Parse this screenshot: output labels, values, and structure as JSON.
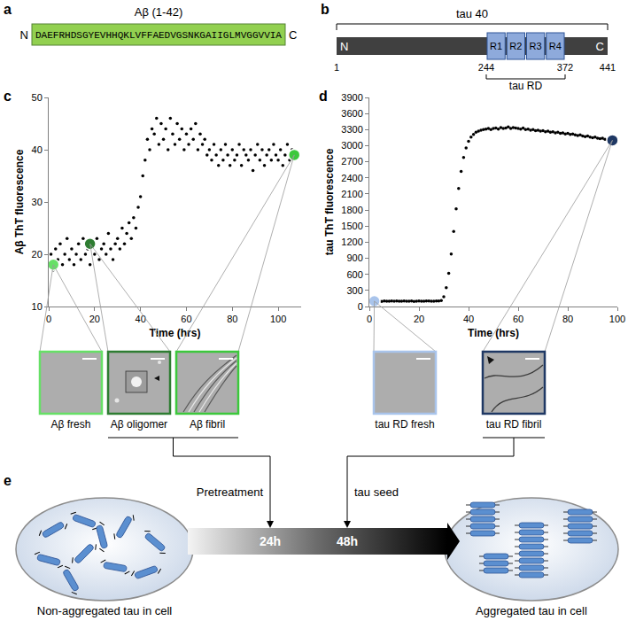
{
  "panel_labels": [
    "a",
    "b",
    "c",
    "d",
    "e"
  ],
  "panel_a": {
    "title": "Aβ (1-42)",
    "n_label": "N",
    "c_label": "C",
    "sequence": "DAEFRHDSGYEVHHQKLVFFAEDVGSNKGAIIGLMVGGVVIA",
    "color": "#92d050"
  },
  "panel_b": {
    "protein": "tau 40",
    "fragment": "tau RD",
    "n_label": "N",
    "c_label": "C",
    "repeats": [
      "R1",
      "R2",
      "R3",
      "R4"
    ],
    "start": 1,
    "length": 441,
    "fragment_range": [
      244,
      372
    ],
    "color": "#404040",
    "repeat_color": "#8eaadb"
  },
  "chart_data": [
    {
      "type": "scatter",
      "xlabel": "Time (hrs)",
      "ylabel": "Aβ ThT fluorescence",
      "xlim": [
        0,
        110
      ],
      "xticks": [
        0,
        20,
        40,
        60,
        80,
        100
      ],
      "ylim": [
        10,
        50
      ],
      "yticks": [
        10,
        20,
        30,
        40,
        50
      ],
      "grid": false,
      "series": [
        {
          "marker": "dot",
          "color": "#000000",
          "x": [
            0,
            1,
            2,
            3,
            4,
            5,
            6,
            7,
            8,
            9,
            10,
            11,
            12,
            13,
            14,
            15,
            16,
            17,
            18,
            19,
            20,
            21,
            22,
            23,
            24,
            25,
            26,
            27,
            28,
            29,
            30,
            31,
            32,
            33,
            34,
            35,
            36,
            37,
            38,
            39,
            40,
            41,
            42,
            43,
            44,
            45,
            46,
            47,
            48,
            49,
            50,
            51,
            52,
            53,
            54,
            55,
            56,
            57,
            58,
            59,
            60,
            61,
            62,
            63,
            64,
            65,
            66,
            67,
            68,
            69,
            70,
            71,
            72,
            73,
            74,
            75,
            76,
            77,
            78,
            79,
            80,
            81,
            82,
            83,
            84,
            85,
            86,
            87,
            88,
            89,
            90,
            91,
            92,
            93,
            94,
            95,
            96,
            97,
            98,
            99,
            100,
            101,
            102,
            103,
            104,
            105,
            106,
            107
          ],
          "values": [
            18,
            20,
            17,
            21,
            19,
            22,
            18,
            20,
            23,
            19,
            21,
            18,
            20,
            22,
            19,
            23,
            20,
            21,
            18,
            22,
            20,
            23,
            19,
            21,
            22,
            20,
            24,
            21,
            19,
            22,
            23,
            21,
            25,
            22,
            24,
            26,
            23,
            27,
            25,
            29,
            31,
            35,
            38,
            42,
            40,
            44,
            43,
            46,
            41,
            45,
            42,
            44,
            40,
            46,
            43,
            41,
            45,
            42,
            44,
            40,
            43,
            41,
            44,
            42,
            45,
            40,
            43,
            41,
            42,
            39,
            40,
            38,
            41,
            39,
            37,
            40,
            38,
            41,
            39,
            37,
            40,
            38,
            39,
            41,
            37,
            40,
            39,
            38,
            40,
            36,
            39,
            41,
            38,
            40,
            37,
            39,
            40,
            38,
            41,
            39,
            38,
            40,
            37,
            39,
            41,
            38,
            40,
            39
          ]
        },
        {
          "marker": "circle",
          "colors": [
            "#66e066",
            "#2e7d32",
            "#3cc83c"
          ],
          "x": [
            2,
            18,
            107
          ],
          "values": [
            18,
            22,
            39
          ]
        }
      ],
      "images": [
        {
          "label": "Aβ fresh",
          "color": "#66e066"
        },
        {
          "label": "Aβ oligomer",
          "color": "#2e7d32"
        },
        {
          "label": "Aβ fibril",
          "color": "#3cc83c"
        }
      ]
    },
    {
      "type": "scatter",
      "xlabel": "Time (hrs)",
      "ylabel": "tau ThT fluorescence",
      "xlim": [
        0,
        100
      ],
      "xticks": [
        0,
        20,
        40,
        60,
        80,
        100
      ],
      "ylim": [
        0,
        3900
      ],
      "yticks": [
        0,
        300,
        600,
        900,
        1200,
        1500,
        1800,
        2100,
        2400,
        2700,
        3000,
        3300,
        3600,
        3900
      ],
      "grid": false,
      "series": [
        {
          "marker": "dot",
          "color": "#000000",
          "x": [
            0,
            1,
            2,
            3,
            4,
            5,
            6,
            7,
            8,
            9,
            10,
            11,
            12,
            13,
            14,
            15,
            16,
            17,
            18,
            19,
            20,
            21,
            22,
            23,
            24,
            25,
            26,
            27,
            28,
            29,
            30,
            31,
            32,
            33,
            34,
            35,
            36,
            37,
            38,
            39,
            40,
            41,
            42,
            43,
            44,
            45,
            46,
            47,
            48,
            49,
            50,
            51,
            52,
            53,
            54,
            55,
            56,
            57,
            58,
            59,
            60,
            61,
            62,
            63,
            64,
            65,
            66,
            67,
            68,
            69,
            70,
            71,
            72,
            73,
            74,
            75,
            76,
            77,
            78,
            79,
            80,
            81,
            82,
            83,
            84,
            85,
            86,
            87,
            88,
            89,
            90,
            91,
            92,
            93,
            94,
            95,
            96,
            97,
            98
          ],
          "values": [
            100,
            105,
            98,
            102,
            100,
            97,
            103,
            101,
            99,
            104,
            100,
            102,
            98,
            101,
            103,
            99,
            100,
            102,
            97,
            101,
            103,
            100,
            99,
            102,
            104,
            101,
            98,
            103,
            105,
            110,
            180,
            350,
            620,
            980,
            1400,
            1820,
            2200,
            2520,
            2780,
            2960,
            3080,
            3160,
            3210,
            3250,
            3270,
            3290,
            3300,
            3310,
            3320,
            3300,
            3320,
            3330,
            3310,
            3340,
            3320,
            3330,
            3350,
            3320,
            3340,
            3330,
            3320,
            3310,
            3330,
            3300,
            3310,
            3290,
            3300,
            3280,
            3290,
            3270,
            3280,
            3260,
            3270,
            3250,
            3260,
            3240,
            3250,
            3230,
            3240,
            3220,
            3230,
            3210,
            3220,
            3200,
            3190,
            3200,
            3180,
            3170,
            3180,
            3160,
            3150,
            3160,
            3140,
            3130,
            3140,
            3120,
            3110,
            3120,
            3100
          ]
        },
        {
          "marker": "circle",
          "colors": [
            "#a9c4eb",
            "#1f3864"
          ],
          "x": [
            2,
            98
          ],
          "values": [
            100,
            3100
          ]
        }
      ],
      "images": [
        {
          "label": "tau RD fresh",
          "color": "#a9c4eb"
        },
        {
          "label": "tau RD fibril",
          "color": "#1f3864"
        }
      ]
    }
  ],
  "panel_e": {
    "pretreatment": "Pretreatment",
    "seed": "tau seed",
    "times": [
      "24h",
      "48h"
    ],
    "start_state": "Non-aggregated tau in cell",
    "end_state": "Aggregated tau in cell"
  }
}
